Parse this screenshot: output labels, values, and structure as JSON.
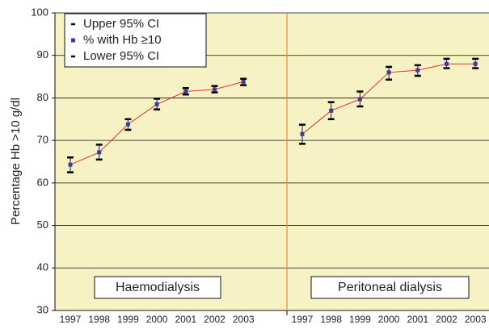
{
  "chart_data": {
    "type": "errorbar",
    "ylabel": "Percentage Hb >10 g/dl",
    "ylim": [
      30,
      100
    ],
    "yticks": [
      30,
      40,
      50,
      60,
      70,
      80,
      90,
      100
    ],
    "grid": true,
    "legend": "upper left",
    "legend_entries": [
      {
        "name": "Upper 95% CI",
        "color": "#000000"
      },
      {
        "name": "% with Hb ≥10",
        "color": "#3b3ba8"
      },
      {
        "name": "Lower 95% CI",
        "color": "#000000"
      }
    ],
    "line_color": "#e03030",
    "panels": [
      {
        "label": "Haemodialysis",
        "categories": [
          "1997",
          "1998",
          "1999",
          "2000",
          "2001",
          "2002",
          "2003"
        ],
        "values": [
          64.3,
          67.2,
          73.8,
          78.5,
          81.5,
          82,
          83.8
        ],
        "upper": [
          66,
          69,
          75,
          79.8,
          82.3,
          82.8,
          84.5
        ],
        "lower": [
          62.5,
          65.5,
          72.5,
          77.3,
          80.8,
          81.3,
          83
        ]
      },
      {
        "label": "Peritoneal dialysis",
        "categories": [
          "1997",
          "1998",
          "1999",
          "2000",
          "2001",
          "2002",
          "2003"
        ],
        "values": [
          71.5,
          77,
          79.7,
          86,
          86.5,
          88,
          88
        ],
        "upper": [
          73.7,
          79,
          81.5,
          87.3,
          87.7,
          89.2,
          89.2
        ],
        "lower": [
          69.2,
          75,
          78,
          84.3,
          85.2,
          87,
          87
        ]
      }
    ]
  }
}
